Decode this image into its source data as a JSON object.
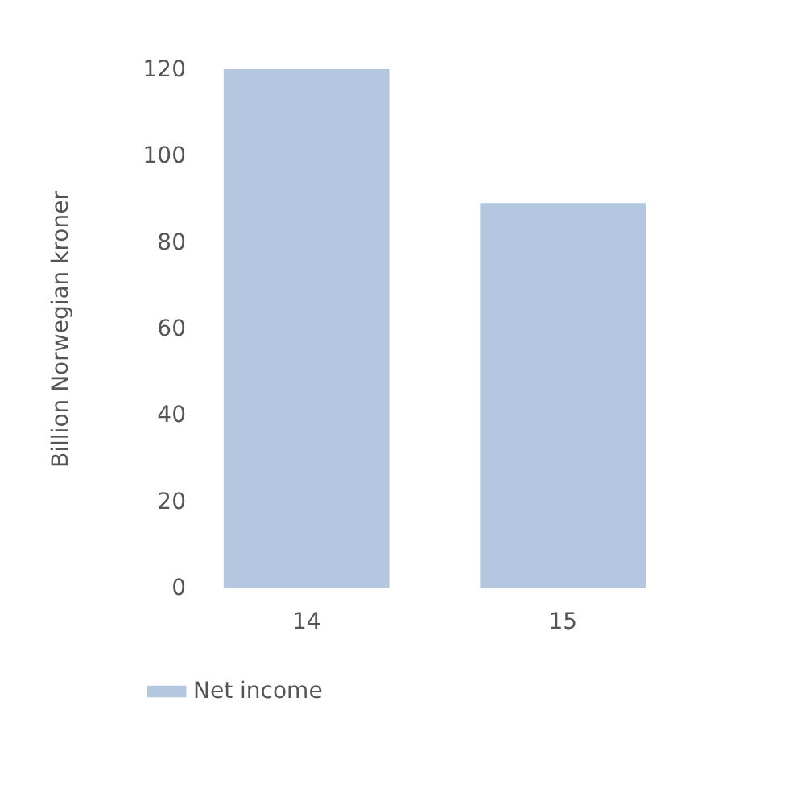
{
  "chart_data": {
    "type": "bar",
    "ylabel": "Billion Norwegian kroner",
    "categories": [
      "14",
      "15"
    ],
    "series": [
      {
        "name": "Net income",
        "color": "#b3c7e1",
        "values": [
          120,
          89
        ]
      }
    ],
    "ylim": [
      0,
      120
    ],
    "yticks": [
      0,
      20,
      40,
      60,
      80,
      100,
      120
    ],
    "grid": false,
    "legend": "bottom"
  }
}
